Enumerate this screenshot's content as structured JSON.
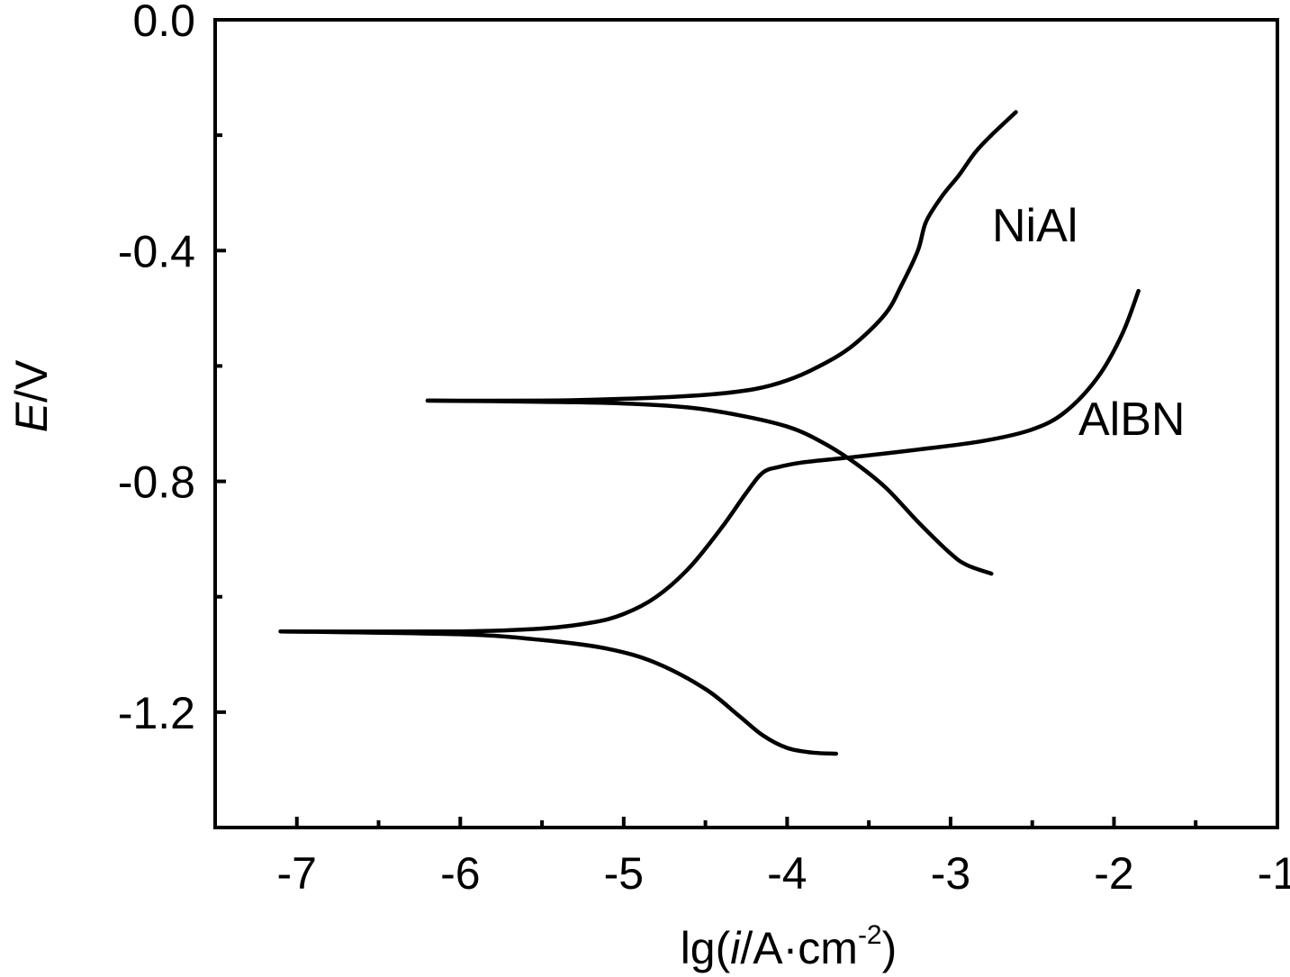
{
  "chart_data": {
    "type": "line",
    "xlabel": {
      "prefix": "lg(",
      "italic": "i",
      "middle": "/A·cm",
      "superscript": "-2",
      "suffix": ")"
    },
    "ylabel": {
      "italic": "E",
      "suffix": "/V"
    },
    "xlim": [
      -7.5,
      -1
    ],
    "ylim": [
      -1.4,
      0.0
    ],
    "x_ticks": [
      -7,
      -6,
      -5,
      -4,
      -3,
      -2,
      -1
    ],
    "x_tick_labels": [
      "-7",
      "-6",
      "-5",
      "-4",
      "-3",
      "-2",
      "-1"
    ],
    "x_minor_ticks": [
      -6.5,
      -5.5,
      -4.5,
      -3.5,
      -2.5,
      -1.5
    ],
    "y_ticks": [
      0.0,
      -0.4,
      -0.8,
      -1.2
    ],
    "y_tick_labels": [
      "0.0",
      "-0.4",
      "-0.8",
      "-1.2"
    ],
    "y_minor_ticks": [
      -0.2,
      -0.6,
      -1.0
    ],
    "grid": false,
    "legend": "none",
    "line_color": "#000000",
    "series": [
      {
        "name": "NiAl",
        "branches": [
          {
            "branch": "anodic",
            "x": [
              -6.2,
              -5.5,
              -5.0,
              -4.5,
              -4.2,
              -4.0,
              -3.8,
              -3.6,
              -3.4,
              -3.3,
              -3.2,
              -3.15,
              -3.05,
              -2.95,
              -2.85,
              -2.75,
              -2.6
            ],
            "y": [
              -0.66,
              -0.66,
              -0.657,
              -0.65,
              -0.64,
              -0.625,
              -0.6,
              -0.565,
              -0.51,
              -0.46,
              -0.4,
              -0.35,
              -0.305,
              -0.27,
              -0.23,
              -0.2,
              -0.16
            ]
          },
          {
            "branch": "cathodic",
            "x": [
              -6.2,
              -5.5,
              -5.0,
              -4.6,
              -4.3,
              -4.0,
              -3.8,
              -3.6,
              -3.4,
              -3.2,
              -3.0,
              -2.9,
              -2.75
            ],
            "y": [
              -0.66,
              -0.662,
              -0.665,
              -0.672,
              -0.685,
              -0.705,
              -0.73,
              -0.765,
              -0.81,
              -0.87,
              -0.925,
              -0.945,
              -0.96
            ]
          }
        ]
      },
      {
        "name": "AlBN",
        "branches": [
          {
            "branch": "anodic",
            "x": [
              -7.1,
              -6.0,
              -5.5,
              -5.2,
              -5.0,
              -4.8,
              -4.6,
              -4.4,
              -4.25,
              -4.15,
              -4.05,
              -3.9,
              -3.6,
              -3.2,
              -2.8,
              -2.5,
              -2.3,
              -2.1,
              -1.95,
              -1.85
            ],
            "y": [
              -1.06,
              -1.06,
              -1.055,
              -1.045,
              -1.03,
              -1.0,
              -0.95,
              -0.88,
              -0.82,
              -0.785,
              -0.775,
              -0.767,
              -0.758,
              -0.745,
              -0.73,
              -0.71,
              -0.68,
              -0.62,
              -0.545,
              -0.47
            ]
          },
          {
            "branch": "cathodic",
            "x": [
              -7.1,
              -6.0,
              -5.5,
              -5.1,
              -4.8,
              -4.5,
              -4.3,
              -4.15,
              -4.0,
              -3.85,
              -3.7
            ],
            "y": [
              -1.06,
              -1.065,
              -1.075,
              -1.09,
              -1.115,
              -1.16,
              -1.205,
              -1.24,
              -1.262,
              -1.27,
              -1.272
            ]
          }
        ]
      }
    ]
  }
}
